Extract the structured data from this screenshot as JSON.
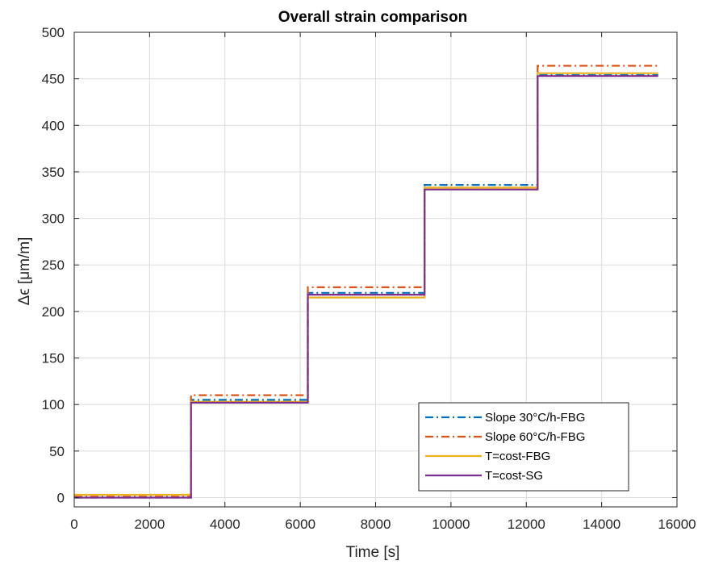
{
  "chart_data": {
    "type": "line",
    "title": "Overall strain comparison",
    "xlabel": "Time [s]",
    "ylabel": "Δϵ [μm/m]",
    "xlim": [
      0,
      16000
    ],
    "ylim": [
      -10,
      500
    ],
    "xticks": [
      0,
      2000,
      4000,
      6000,
      8000,
      10000,
      12000,
      14000,
      16000
    ],
    "yticks": [
      0,
      50,
      100,
      150,
      200,
      250,
      300,
      350,
      400,
      450,
      500
    ],
    "xtick_labels": [
      "0",
      "2000",
      "4000",
      "6000",
      "8000",
      "10000",
      "12000",
      "14000",
      "16000"
    ],
    "ytick_labels": [
      "0",
      "50",
      "100",
      "150",
      "200",
      "250",
      "300",
      "350",
      "400",
      "450",
      "500"
    ],
    "grid": true,
    "legend_position": "bottom-right",
    "series": [
      {
        "name": "Slope 30°C/h-FBG",
        "color": "#0072BD",
        "dash": "dash-dot",
        "x": [
          0,
          3100,
          3100,
          6200,
          6200,
          9300,
          9300,
          12300,
          12300,
          15500
        ],
        "y": [
          0,
          0,
          105,
          105,
          220,
          220,
          336,
          336,
          454,
          454
        ]
      },
      {
        "name": "Slope 60°C/h-FBG",
        "color": "#D95319",
        "dash": "dash-dot",
        "x": [
          0,
          3100,
          3100,
          6200,
          6200,
          9300,
          9300,
          12300,
          12300,
          15500
        ],
        "y": [
          1,
          1,
          110,
          110,
          226,
          226,
          333,
          333,
          464,
          464
        ]
      },
      {
        "name": "T=cost-FBG",
        "color": "#EDB120",
        "dash": "solid",
        "x": [
          0,
          3100,
          3100,
          6200,
          6200,
          9300,
          9300,
          12300,
          12300,
          15500
        ],
        "y": [
          3,
          3,
          103,
          103,
          215,
          215,
          333,
          333,
          456,
          456
        ]
      },
      {
        "name": "T=cost-SG",
        "color": "#7E2F8E",
        "dash": "solid",
        "x": [
          0,
          3100,
          3100,
          6200,
          6200,
          9300,
          9300,
          12300,
          12300,
          15500
        ],
        "y": [
          0,
          0,
          102,
          102,
          218,
          218,
          331,
          331,
          453,
          453
        ]
      }
    ]
  }
}
